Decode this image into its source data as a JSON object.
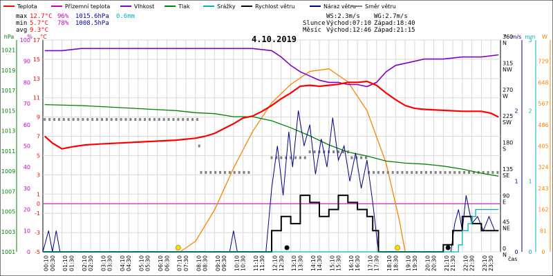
{
  "chart_data": {
    "type": "line",
    "title": "4.10.2019",
    "legend": [
      "Teplota",
      "Přízemní teplota",
      "Vlhkost",
      "Tlak",
      "Srážky",
      "Rychlost větru",
      "Náraz větru",
      "Směr větru"
    ],
    "colors": {
      "temp": "#ff0000",
      "ground": "#c000c0",
      "humidity": "#8000c0",
      "pressure": "#008000",
      "rain": "#00b0c0",
      "wind": "#000000",
      "gust": "#000080",
      "direction": "#808080",
      "sun": "#ff8000",
      "axis_hpa": "#008000",
      "axis_pct": "#c000c0",
      "axis_c": "#ff0000",
      "axis_ms": "#000080",
      "axis_mm": "#00b0c0",
      "axis_w": "#ff8000"
    },
    "stats": {
      "max": {
        "label": "max",
        "temp": "12.7°C",
        "hum": "96%",
        "press": "1015.6hPa",
        "rain": "0.6mm"
      },
      "min": {
        "label": "min",
        "temp": "5.7°C",
        "hum": "78%",
        "press": "1008.5hPa"
      },
      "avg": {
        "label": "avg",
        "temp": "9.3°C"
      }
    },
    "info": {
      "ws": "WS:2.3m/s",
      "wg": "WG:2.7m/s",
      "sun_label": "Slunce",
      "sunrise": "Východ:07:10",
      "sunset": "Západ:18:40",
      "moon_label": "Měsíc",
      "moonrise": "Východ:12:46",
      "moonset": "Západ:21:15"
    },
    "axes": {
      "hpa_title": "hPa",
      "pct_title": "%",
      "c_title": "°C",
      "dir_title": "°",
      "ms_title": "m/s",
      "mm_title": "mm",
      "w_title": "W",
      "x_title": "čas",
      "hpa": [
        "1001",
        "1003",
        "1005",
        "1007",
        "1009",
        "1011",
        "1013",
        "1015",
        "1017",
        "1019",
        "1021"
      ],
      "pct": [
        "0",
        "10",
        "20",
        "30",
        "40",
        "50",
        "60",
        "70",
        "80",
        "90",
        "100"
      ],
      "c": [
        "-5",
        "-3",
        "-1",
        "0",
        "1",
        "3",
        "5",
        "7",
        "9",
        "11",
        "13",
        "15",
        "17"
      ],
      "c_values": [
        -5,
        -3,
        -1,
        0,
        1,
        3,
        5,
        7,
        9,
        11,
        13,
        15,
        17
      ],
      "dir_deg": [
        "0",
        "45",
        "90",
        "135",
        "180",
        "225",
        "270",
        "315",
        "360"
      ],
      "dir_name": [
        "N",
        "NE",
        "E",
        "SE",
        "S",
        "SW",
        "W",
        "NW",
        "N"
      ],
      "ms": [
        "0",
        "1",
        "2"
      ],
      "mm": [
        "0",
        "1",
        "2",
        "3"
      ],
      "w": [
        "0",
        "81",
        "162",
        "243",
        "324",
        "405",
        "486",
        "567",
        "648",
        "729"
      ],
      "x_ticks": [
        "00:10",
        "00:30",
        "01:10",
        "01:30",
        "02:10",
        "02:30",
        "03:10",
        "03:30",
        "04:10",
        "04:30",
        "05:10",
        "05:30",
        "06:10",
        "06:30",
        "07:10",
        "07:30",
        "08:10",
        "08:30",
        "09:10",
        "09:30",
        "10:10",
        "10:30",
        "11:10",
        "11:30",
        "12:10",
        "12:30",
        "13:10",
        "13:30",
        "14:10",
        "14:30",
        "15:10",
        "15:30",
        "16:10",
        "16:30",
        "17:10",
        "17:30",
        "18:10",
        "18:30",
        "19:10",
        "19:30",
        "20:10",
        "20:30",
        "21:10",
        "21:30",
        "22:10",
        "22:30",
        "23:10",
        "23:30"
      ]
    },
    "ranges": {
      "x": [
        0,
        24
      ],
      "temp_c": [
        -5,
        17
      ],
      "humidity_pct": [
        0,
        100
      ],
      "pressure_hpa": [
        1001,
        1022
      ],
      "wind_ms": [
        0,
        3
      ],
      "rain_mm": [
        0,
        3
      ],
      "direction_deg": [
        0,
        360
      ],
      "solar_w": [
        0,
        810
      ]
    },
    "series": {
      "temp": [
        [
          0.1,
          7.0
        ],
        [
          0.5,
          6.3
        ],
        [
          1.0,
          5.7
        ],
        [
          1.5,
          5.9
        ],
        [
          2.2,
          6.1
        ],
        [
          3.0,
          6.2
        ],
        [
          4.0,
          6.3
        ],
        [
          5.0,
          6.4
        ],
        [
          6.0,
          6.5
        ],
        [
          7.0,
          6.6
        ],
        [
          8.0,
          6.8
        ],
        [
          8.5,
          7.0
        ],
        [
          9.0,
          7.3
        ],
        [
          9.5,
          7.8
        ],
        [
          10.0,
          8.3
        ],
        [
          10.5,
          8.9
        ],
        [
          11.0,
          9.1
        ],
        [
          11.5,
          9.6
        ],
        [
          12.0,
          10.2
        ],
        [
          12.5,
          10.9
        ],
        [
          13.0,
          11.5
        ],
        [
          13.5,
          12.2
        ],
        [
          14.0,
          12.3
        ],
        [
          14.5,
          12.2
        ],
        [
          15.0,
          12.3
        ],
        [
          15.5,
          12.4
        ],
        [
          16.0,
          12.6
        ],
        [
          16.5,
          12.6
        ],
        [
          17.0,
          12.7
        ],
        [
          17.5,
          12.3
        ],
        [
          18.0,
          11.5
        ],
        [
          18.5,
          10.8
        ],
        [
          19.0,
          10.2
        ],
        [
          19.5,
          9.9
        ],
        [
          20.0,
          9.8
        ],
        [
          21.0,
          9.7
        ],
        [
          22.0,
          9.6
        ],
        [
          23.0,
          9.6
        ],
        [
          23.5,
          9.4
        ],
        [
          23.9,
          9.0
        ]
      ],
      "humidity": [
        [
          0.1,
          95
        ],
        [
          1.0,
          95
        ],
        [
          2.0,
          96
        ],
        [
          4.0,
          96
        ],
        [
          6.0,
          96
        ],
        [
          8.0,
          96
        ],
        [
          9.0,
          96
        ],
        [
          11.0,
          96
        ],
        [
          12.0,
          95
        ],
        [
          12.5,
          92
        ],
        [
          13.0,
          88
        ],
        [
          13.5,
          85
        ],
        [
          14.0,
          83
        ],
        [
          14.5,
          81
        ],
        [
          15.0,
          80
        ],
        [
          15.5,
          80
        ],
        [
          16.0,
          79
        ],
        [
          16.5,
          79
        ],
        [
          17.0,
          78
        ],
        [
          17.5,
          80
        ],
        [
          18.0,
          85
        ],
        [
          18.5,
          88
        ],
        [
          19.0,
          89
        ],
        [
          19.5,
          90
        ],
        [
          20.0,
          91
        ],
        [
          21.0,
          91
        ],
        [
          22.0,
          92
        ],
        [
          23.0,
          92
        ],
        [
          23.9,
          93
        ]
      ],
      "pressure": [
        [
          0.1,
          1015.6
        ],
        [
          2.0,
          1015.5
        ],
        [
          4.0,
          1015.3
        ],
        [
          6.0,
          1015.1
        ],
        [
          7.0,
          1015.0
        ],
        [
          8.0,
          1014.8
        ],
        [
          9.0,
          1014.7
        ],
        [
          10.0,
          1014.4
        ],
        [
          11.0,
          1014.4
        ],
        [
          12.0,
          1014.0
        ],
        [
          13.0,
          1013.3
        ],
        [
          14.0,
          1012.5
        ],
        [
          15.0,
          1011.6
        ],
        [
          16.0,
          1010.9
        ],
        [
          17.0,
          1010.5
        ],
        [
          18.0,
          1010.0
        ],
        [
          19.0,
          1009.8
        ],
        [
          20.0,
          1009.7
        ],
        [
          21.0,
          1009.5
        ],
        [
          22.0,
          1009.2
        ],
        [
          23.0,
          1008.8
        ],
        [
          23.9,
          1008.5
        ]
      ],
      "ground_temp_c": 0,
      "direction": [
        [
          0.1,
          225,
          8.3
        ],
        [
          8.2,
          180,
          8.2
        ],
        [
          8.3,
          135,
          10.9
        ],
        [
          12.0,
          160,
          13.8
        ],
        [
          14.0,
          170,
          16.1
        ],
        [
          16.2,
          160,
          17.0
        ],
        [
          17.1,
          135,
          23.9
        ]
      ],
      "wind": [
        [
          0,
          0
        ],
        [
          11.8,
          0
        ],
        [
          12.0,
          0.3
        ],
        [
          12.5,
          0.5
        ],
        [
          13.0,
          0.4
        ],
        [
          13.5,
          0.8
        ],
        [
          14.0,
          0.7
        ],
        [
          14.5,
          0.5
        ],
        [
          15.0,
          0.6
        ],
        [
          15.5,
          0.8
        ],
        [
          16.0,
          0.7
        ],
        [
          16.5,
          0.6
        ],
        [
          17.0,
          0.5
        ],
        [
          17.3,
          0.3
        ],
        [
          17.6,
          0
        ],
        [
          20.5,
          0
        ],
        [
          21.0,
          0.1
        ],
        [
          21.5,
          0.3
        ],
        [
          22.0,
          0.5
        ],
        [
          22.5,
          0.4
        ],
        [
          23.0,
          0.3
        ],
        [
          23.9,
          0.3
        ]
      ],
      "gust": [
        [
          0,
          0
        ],
        [
          0.3,
          0.3
        ],
        [
          0.5,
          0
        ],
        [
          0.7,
          0.3
        ],
        [
          0.9,
          0
        ],
        [
          9.8,
          0
        ],
        [
          10.0,
          0.3
        ],
        [
          10.2,
          0
        ],
        [
          11.7,
          0
        ],
        [
          12.0,
          0.9
        ],
        [
          12.3,
          1.5
        ],
        [
          12.6,
          0.8
        ],
        [
          12.9,
          1.7
        ],
        [
          13.1,
          1.2
        ],
        [
          13.4,
          2.0
        ],
        [
          13.7,
          1.5
        ],
        [
          14.0,
          1.8
        ],
        [
          14.3,
          1.1
        ],
        [
          14.6,
          1.6
        ],
        [
          14.9,
          1.2
        ],
        [
          15.2,
          1.9
        ],
        [
          15.5,
          1.3
        ],
        [
          15.8,
          1.5
        ],
        [
          16.1,
          1.0
        ],
        [
          16.4,
          1.4
        ],
        [
          16.7,
          0.9
        ],
        [
          17.0,
          1.3
        ],
        [
          17.3,
          0.7
        ],
        [
          17.6,
          0
        ],
        [
          21.4,
          0
        ],
        [
          21.6,
          0.4
        ],
        [
          21.8,
          0.6
        ],
        [
          22.0,
          0.3
        ],
        [
          22.2,
          0.8
        ],
        [
          22.5,
          0.4
        ],
        [
          22.8,
          0.5
        ],
        [
          23.1,
          0.3
        ],
        [
          23.4,
          0.5
        ],
        [
          23.7,
          0.3
        ],
        [
          23.9,
          0.3
        ]
      ],
      "rain": [
        [
          0,
          0
        ],
        [
          21.6,
          0
        ],
        [
          21.8,
          0.1
        ],
        [
          22.0,
          0.3
        ],
        [
          22.3,
          0.4
        ],
        [
          22.5,
          0.5
        ],
        [
          22.7,
          0.6
        ],
        [
          22.9,
          0.6
        ],
        [
          23.9,
          0.6
        ]
      ],
      "solar": [
        [
          7.2,
          0
        ],
        [
          8.0,
          40
        ],
        [
          9.0,
          160
        ],
        [
          10.0,
          320
        ],
        [
          11.0,
          460
        ],
        [
          12.0,
          570
        ],
        [
          13.0,
          640
        ],
        [
          14.0,
          690
        ],
        [
          15.0,
          700
        ],
        [
          16.0,
          650
        ],
        [
          17.0,
          540
        ],
        [
          18.0,
          340
        ],
        [
          18.7,
          120
        ],
        [
          19.0,
          0
        ]
      ],
      "sun_markers": [
        7.1,
        18.6
      ],
      "moon_markers": [
        12.8,
        21.25
      ]
    }
  }
}
